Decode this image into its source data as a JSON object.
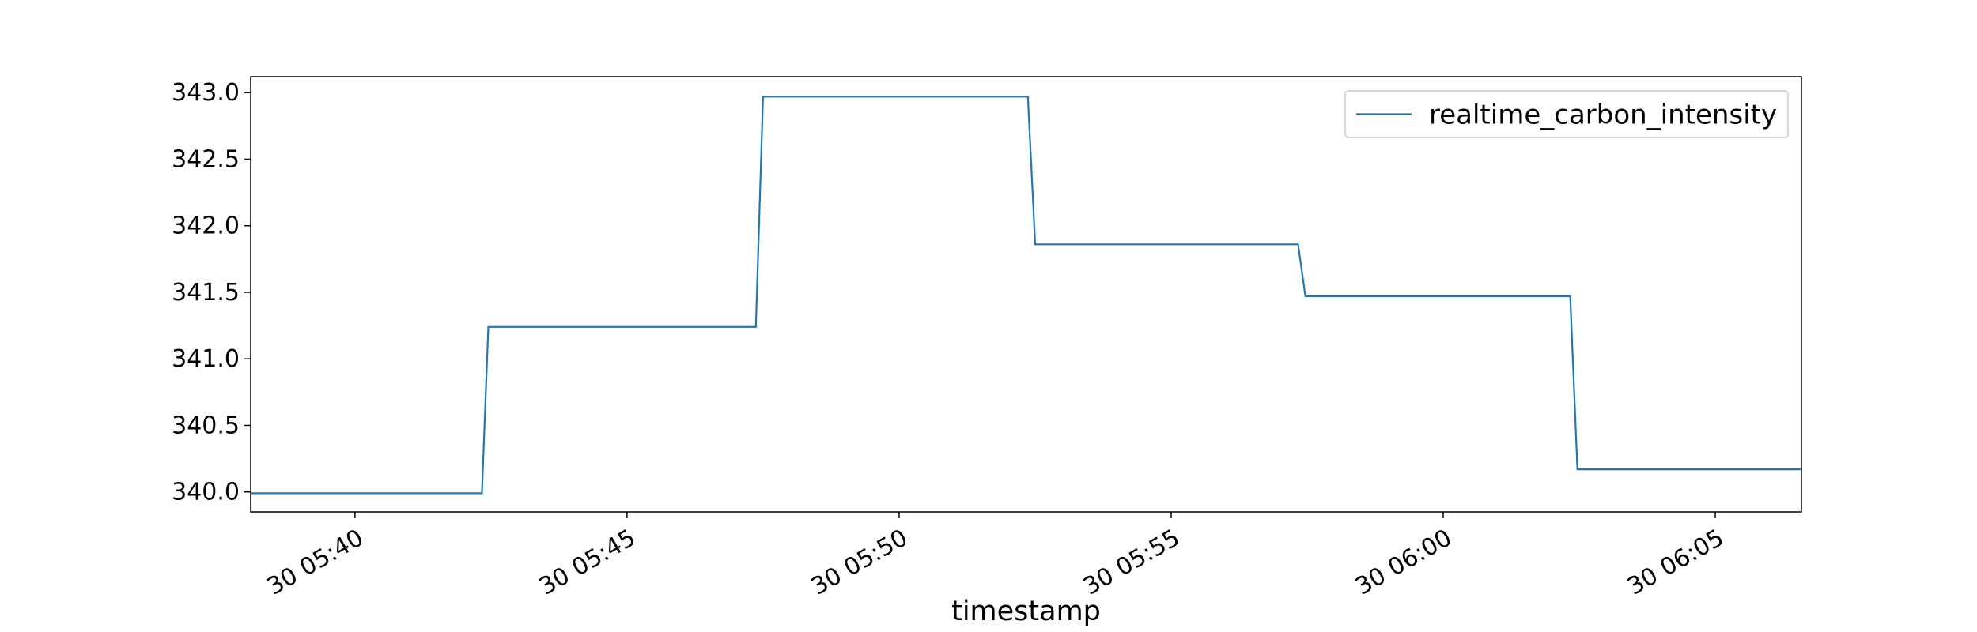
{
  "chart_data": {
    "type": "line",
    "xlabel": "timestamp",
    "ylabel": "",
    "x_ticks": [
      "30 05:40",
      "30 05:45",
      "30 05:50",
      "30 05:55",
      "30 06:00",
      "30 06:05"
    ],
    "y_ticks": [
      "340.0",
      "340.5",
      "341.0",
      "341.5",
      "342.0",
      "342.5",
      "343.0"
    ],
    "xlim": [
      "05:38:05",
      "06:06:35"
    ],
    "ylim": [
      339.85,
      343.12
    ],
    "grid": false,
    "legend_position": "top-right",
    "series": [
      {
        "name": "realtime_carbon_intensity",
        "color": "#1f77b4",
        "x": [
          "05:38:05",
          "05:42:20",
          "05:42:27",
          "05:47:22",
          "05:47:30",
          "05:52:22",
          "05:52:30",
          "05:57:20",
          "05:57:28",
          "06:02:20",
          "06:02:28",
          "06:06:35"
        ],
        "values": [
          339.99,
          339.99,
          341.24,
          341.24,
          342.97,
          342.97,
          341.86,
          341.86,
          341.47,
          341.47,
          340.17,
          340.17
        ]
      }
    ]
  }
}
